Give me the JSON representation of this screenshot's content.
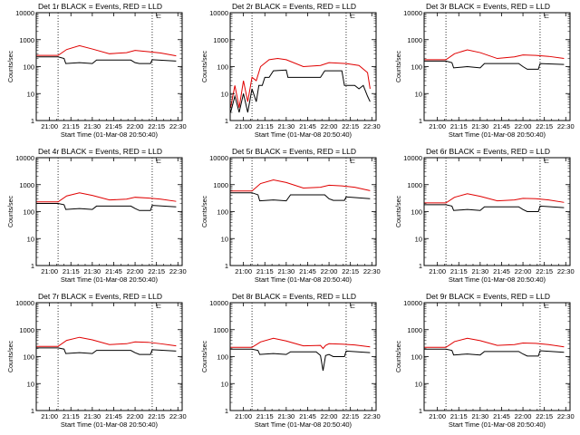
{
  "chart_data": {
    "type": "line",
    "title_suffix": "BLACK = Events, RED = LLD",
    "legend_mark": "⊏",
    "xlabel": "Start Time (01-Mar-08 20:50:40)",
    "ylabel": "Counts/sec",
    "xlim": [
      20.845,
      22.55
    ],
    "x_ticks": [
      21.0,
      21.25,
      21.5,
      21.75,
      22.0,
      22.25,
      22.5
    ],
    "x_tick_labels": [
      "21:00",
      "21:15",
      "21:30",
      "21:45",
      "22:00",
      "22:15",
      "22:30"
    ],
    "y_scale": "log",
    "ylim": [
      1,
      10000
    ],
    "y_ticks": [
      1,
      10,
      100,
      1000,
      10000
    ],
    "y_tick_labels": [
      "1",
      "10",
      "100",
      "1000",
      "10000"
    ],
    "vlines": [
      21.1,
      22.2
    ],
    "colors": {
      "events": "#000000",
      "lld": "#e00000",
      "vline": "#000000"
    },
    "series_legend": {
      "events": "Events",
      "lld": "LLD"
    },
    "panels": [
      {
        "title": "Det 1r",
        "events": [
          [
            20.85,
            230
          ],
          [
            21.1,
            230
          ],
          [
            21.17,
            200
          ],
          [
            21.19,
            130
          ],
          [
            21.35,
            140
          ],
          [
            21.5,
            130
          ],
          [
            21.55,
            175
          ],
          [
            21.95,
            175
          ],
          [
            22.0,
            140
          ],
          [
            22.05,
            130
          ],
          [
            22.18,
            130
          ],
          [
            22.2,
            180
          ],
          [
            22.48,
            160
          ]
        ],
        "lld": [
          [
            20.85,
            260
          ],
          [
            21.1,
            260
          ],
          [
            21.2,
            430
          ],
          [
            21.35,
            600
          ],
          [
            21.5,
            450
          ],
          [
            21.7,
            300
          ],
          [
            21.9,
            330
          ],
          [
            22.0,
            400
          ],
          [
            22.15,
            360
          ],
          [
            22.3,
            320
          ],
          [
            22.48,
            250
          ]
        ]
      },
      {
        "title": "Det 2r",
        "events": [
          [
            20.85,
            2
          ],
          [
            20.9,
            8
          ],
          [
            20.95,
            2
          ],
          [
            21.0,
            10
          ],
          [
            21.05,
            2
          ],
          [
            21.1,
            15
          ],
          [
            21.15,
            5
          ],
          [
            21.18,
            20
          ],
          [
            21.22,
            20
          ],
          [
            21.25,
            40
          ],
          [
            21.3,
            40
          ],
          [
            21.35,
            70
          ],
          [
            21.5,
            75
          ],
          [
            21.52,
            40
          ],
          [
            21.9,
            40
          ],
          [
            21.95,
            70
          ],
          [
            22.15,
            70
          ],
          [
            22.18,
            20
          ],
          [
            22.3,
            20
          ],
          [
            22.35,
            15
          ],
          [
            22.4,
            20
          ],
          [
            22.45,
            8
          ],
          [
            22.48,
            5
          ]
        ],
        "lld": [
          [
            20.85,
            3
          ],
          [
            20.9,
            20
          ],
          [
            20.95,
            3
          ],
          [
            21.0,
            30
          ],
          [
            21.05,
            5
          ],
          [
            21.1,
            40
          ],
          [
            21.15,
            30
          ],
          [
            21.2,
            100
          ],
          [
            21.3,
            180
          ],
          [
            21.4,
            200
          ],
          [
            21.5,
            180
          ],
          [
            21.7,
            100
          ],
          [
            21.9,
            110
          ],
          [
            22.0,
            140
          ],
          [
            22.2,
            130
          ],
          [
            22.35,
            110
          ],
          [
            22.45,
            60
          ],
          [
            22.48,
            15
          ]
        ]
      },
      {
        "title": "Det 3r",
        "events": [
          [
            20.85,
            160
          ],
          [
            21.1,
            160
          ],
          [
            21.17,
            140
          ],
          [
            21.19,
            90
          ],
          [
            21.35,
            100
          ],
          [
            21.5,
            90
          ],
          [
            21.55,
            130
          ],
          [
            21.95,
            130
          ],
          [
            22.0,
            100
          ],
          [
            22.05,
            80
          ],
          [
            22.18,
            80
          ],
          [
            22.2,
            130
          ],
          [
            22.48,
            120
          ]
        ],
        "lld": [
          [
            20.85,
            180
          ],
          [
            21.1,
            180
          ],
          [
            21.2,
            300
          ],
          [
            21.35,
            420
          ],
          [
            21.5,
            330
          ],
          [
            21.7,
            200
          ],
          [
            21.9,
            230
          ],
          [
            22.0,
            270
          ],
          [
            22.15,
            260
          ],
          [
            22.3,
            240
          ],
          [
            22.48,
            200
          ]
        ]
      },
      {
        "title": "Det 4r",
        "events": [
          [
            20.85,
            200
          ],
          [
            21.1,
            200
          ],
          [
            21.17,
            180
          ],
          [
            21.19,
            120
          ],
          [
            21.35,
            130
          ],
          [
            21.5,
            120
          ],
          [
            21.55,
            160
          ],
          [
            21.95,
            160
          ],
          [
            22.0,
            130
          ],
          [
            22.05,
            110
          ],
          [
            22.18,
            110
          ],
          [
            22.2,
            170
          ],
          [
            22.48,
            150
          ]
        ],
        "lld": [
          [
            20.85,
            230
          ],
          [
            21.1,
            230
          ],
          [
            21.2,
            380
          ],
          [
            21.35,
            500
          ],
          [
            21.5,
            400
          ],
          [
            21.7,
            270
          ],
          [
            21.9,
            290
          ],
          [
            22.0,
            340
          ],
          [
            22.15,
            320
          ],
          [
            22.3,
            290
          ],
          [
            22.48,
            240
          ]
        ]
      },
      {
        "title": "Det 5r",
        "events": [
          [
            20.85,
            500
          ],
          [
            21.1,
            500
          ],
          [
            21.17,
            420
          ],
          [
            21.19,
            250
          ],
          [
            21.35,
            270
          ],
          [
            21.5,
            250
          ],
          [
            21.55,
            420
          ],
          [
            21.95,
            420
          ],
          [
            22.0,
            300
          ],
          [
            22.05,
            260
          ],
          [
            22.18,
            260
          ],
          [
            22.2,
            350
          ],
          [
            22.48,
            300
          ]
        ],
        "lld": [
          [
            20.85,
            580
          ],
          [
            21.1,
            580
          ],
          [
            21.2,
            1100
          ],
          [
            21.35,
            1500
          ],
          [
            21.5,
            1200
          ],
          [
            21.7,
            750
          ],
          [
            21.9,
            800
          ],
          [
            22.0,
            950
          ],
          [
            22.15,
            900
          ],
          [
            22.3,
            800
          ],
          [
            22.48,
            600
          ]
        ]
      },
      {
        "title": "Det 6r",
        "events": [
          [
            20.85,
            180
          ],
          [
            21.1,
            180
          ],
          [
            21.17,
            160
          ],
          [
            21.19,
            110
          ],
          [
            21.35,
            120
          ],
          [
            21.5,
            110
          ],
          [
            21.55,
            150
          ],
          [
            21.95,
            150
          ],
          [
            22.0,
            120
          ],
          [
            22.05,
            100
          ],
          [
            22.18,
            100
          ],
          [
            22.2,
            160
          ],
          [
            22.48,
            140
          ]
        ],
        "lld": [
          [
            20.85,
            210
          ],
          [
            21.1,
            210
          ],
          [
            21.2,
            340
          ],
          [
            21.35,
            460
          ],
          [
            21.5,
            370
          ],
          [
            21.7,
            250
          ],
          [
            21.9,
            270
          ],
          [
            22.0,
            310
          ],
          [
            22.15,
            300
          ],
          [
            22.3,
            270
          ],
          [
            22.48,
            220
          ]
        ]
      },
      {
        "title": "Det 7r",
        "events": [
          [
            20.85,
            210
          ],
          [
            21.1,
            210
          ],
          [
            21.17,
            190
          ],
          [
            21.19,
            130
          ],
          [
            21.35,
            140
          ],
          [
            21.5,
            130
          ],
          [
            21.55,
            170
          ],
          [
            21.95,
            170
          ],
          [
            22.0,
            140
          ],
          [
            22.05,
            120
          ],
          [
            22.18,
            120
          ],
          [
            22.2,
            180
          ],
          [
            22.48,
            160
          ]
        ],
        "lld": [
          [
            20.85,
            240
          ],
          [
            21.1,
            240
          ],
          [
            21.2,
            400
          ],
          [
            21.35,
            520
          ],
          [
            21.5,
            420
          ],
          [
            21.7,
            280
          ],
          [
            21.9,
            300
          ],
          [
            22.0,
            350
          ],
          [
            22.15,
            340
          ],
          [
            22.3,
            300
          ],
          [
            22.48,
            250
          ]
        ]
      },
      {
        "title": "Det 8r",
        "events": [
          [
            20.85,
            190
          ],
          [
            21.1,
            190
          ],
          [
            21.17,
            170
          ],
          [
            21.19,
            120
          ],
          [
            21.35,
            130
          ],
          [
            21.5,
            120
          ],
          [
            21.55,
            150
          ],
          [
            21.85,
            150
          ],
          [
            21.9,
            110
          ],
          [
            21.93,
            30
          ],
          [
            21.96,
            110
          ],
          [
            22.0,
            120
          ],
          [
            22.05,
            100
          ],
          [
            22.18,
            100
          ],
          [
            22.2,
            160
          ],
          [
            22.48,
            140
          ]
        ],
        "lld": [
          [
            20.85,
            220
          ],
          [
            21.1,
            220
          ],
          [
            21.2,
            350
          ],
          [
            21.35,
            480
          ],
          [
            21.5,
            380
          ],
          [
            21.7,
            250
          ],
          [
            21.9,
            260
          ],
          [
            21.93,
            200
          ],
          [
            21.96,
            260
          ],
          [
            22.0,
            300
          ],
          [
            22.15,
            290
          ],
          [
            22.3,
            270
          ],
          [
            22.48,
            230
          ]
        ]
      },
      {
        "title": "Det 9r",
        "events": [
          [
            20.85,
            190
          ],
          [
            21.1,
            190
          ],
          [
            21.17,
            170
          ],
          [
            21.19,
            115
          ],
          [
            21.35,
            125
          ],
          [
            21.5,
            115
          ],
          [
            21.55,
            155
          ],
          [
            21.95,
            155
          ],
          [
            22.0,
            125
          ],
          [
            22.05,
            105
          ],
          [
            22.18,
            105
          ],
          [
            22.2,
            165
          ],
          [
            22.48,
            145
          ]
        ],
        "lld": [
          [
            20.85,
            220
          ],
          [
            21.1,
            220
          ],
          [
            21.2,
            360
          ],
          [
            21.35,
            480
          ],
          [
            21.5,
            390
          ],
          [
            21.7,
            260
          ],
          [
            21.9,
            280
          ],
          [
            22.0,
            320
          ],
          [
            22.15,
            310
          ],
          [
            22.3,
            280
          ],
          [
            22.48,
            230
          ]
        ]
      }
    ]
  }
}
